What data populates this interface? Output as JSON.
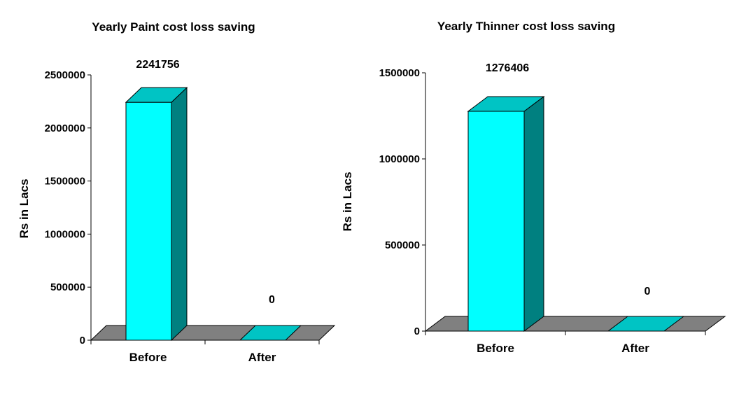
{
  "chart_data": [
    {
      "type": "bar",
      "title": "Yearly Paint cost loss saving",
      "ylabel": "Rs in Lacs",
      "xlabel": "",
      "categories": [
        "Before",
        "After"
      ],
      "values": [
        2241756,
        0
      ],
      "data_labels": [
        "2241756",
        "0"
      ],
      "ylim": [
        0,
        2500000
      ],
      "yticks": [
        0,
        500000,
        1000000,
        1500000,
        2000000,
        2500000
      ],
      "ytick_labels": [
        "0",
        "500000",
        "1000000",
        "1500000",
        "2000000",
        "2500000"
      ],
      "grid": false,
      "legend": "none",
      "style": "3d",
      "colors": {
        "bar_front": "#00ffff",
        "bar_top": "#00c4c4",
        "bar_side": "#008080",
        "floor": "#808080"
      }
    },
    {
      "type": "bar",
      "title": "Yearly Thinner cost loss saving",
      "ylabel": "Rs in Lacs",
      "xlabel": "",
      "categories": [
        "Before",
        "After"
      ],
      "values": [
        1276406,
        0
      ],
      "data_labels": [
        "1276406",
        "0"
      ],
      "ylim": [
        0,
        1500000
      ],
      "yticks": [
        0,
        500000,
        1000000,
        1500000
      ],
      "ytick_labels": [
        "0",
        "500000",
        "1000000",
        "1500000"
      ],
      "grid": false,
      "legend": "none",
      "style": "3d",
      "colors": {
        "bar_front": "#00ffff",
        "bar_top": "#00c4c4",
        "bar_side": "#008080",
        "floor": "#808080"
      }
    }
  ]
}
